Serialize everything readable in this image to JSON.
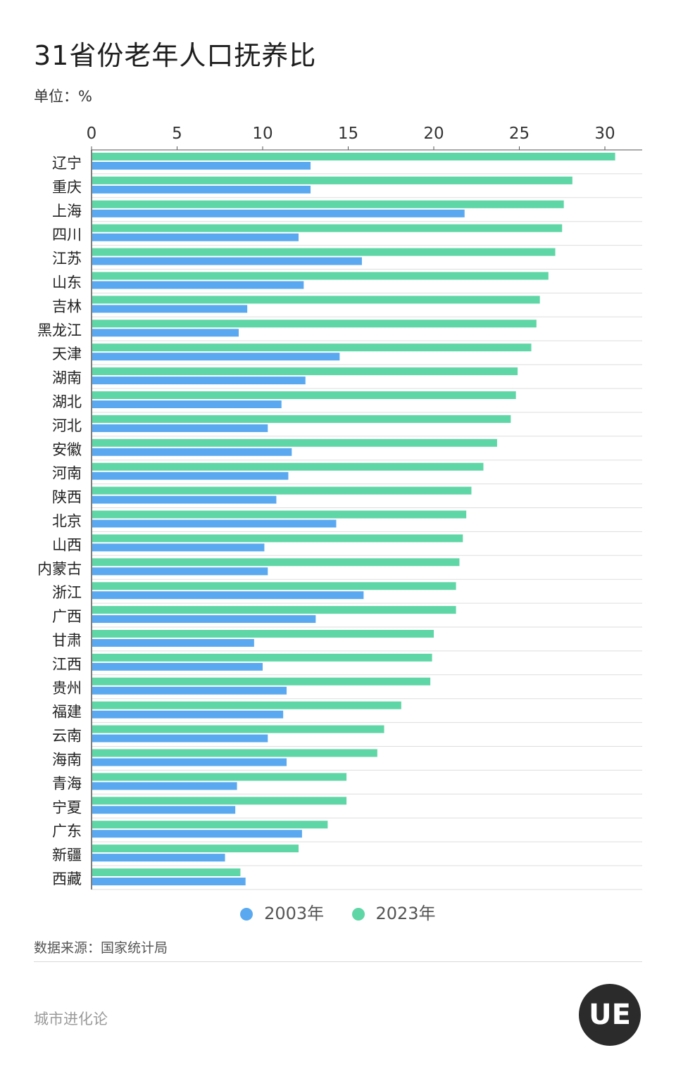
{
  "title": "31省份老年人口抚养比",
  "unit_label": "单位：%",
  "source_label": "数据来源：国家统计局",
  "brand": "城市进化论",
  "logo_text": "UE",
  "colors": {
    "series_2003": "#5aa9f0",
    "series_2023": "#5fd6a6",
    "grid": "#dddddd",
    "axis": "#555555"
  },
  "chart_data": {
    "type": "bar",
    "orientation": "horizontal",
    "xlim": [
      0,
      32
    ],
    "ticks": [
      0,
      5,
      10,
      15,
      20,
      25,
      30
    ],
    "legend": [
      "2003年",
      "2023年"
    ],
    "categories": [
      "辽宁",
      "重庆",
      "上海",
      "四川",
      "江苏",
      "山东",
      "吉林",
      "黑龙江",
      "天津",
      "湖南",
      "湖北",
      "河北",
      "安徽",
      "河南",
      "陕西",
      "北京",
      "山西",
      "内蒙古",
      "浙江",
      "广西",
      "甘肃",
      "江西",
      "贵州",
      "福建",
      "云南",
      "海南",
      "青海",
      "宁夏",
      "广东",
      "新疆",
      "西藏"
    ],
    "series": [
      {
        "name": "2023年",
        "color": "#5fd6a6",
        "values": [
          30.6,
          28.1,
          27.6,
          27.5,
          27.1,
          26.7,
          26.2,
          26.0,
          25.7,
          24.9,
          24.8,
          24.5,
          23.7,
          22.9,
          22.2,
          21.9,
          21.7,
          21.5,
          21.3,
          21.3,
          20.0,
          19.9,
          19.8,
          18.1,
          17.1,
          16.7,
          14.9,
          14.9,
          13.8,
          12.1,
          8.7
        ]
      },
      {
        "name": "2003年",
        "color": "#5aa9f0",
        "values": [
          12.8,
          12.8,
          21.8,
          12.1,
          15.8,
          12.4,
          9.1,
          8.6,
          14.5,
          12.5,
          11.1,
          10.3,
          11.7,
          11.5,
          10.8,
          14.3,
          10.1,
          10.3,
          15.9,
          13.1,
          9.5,
          10.0,
          11.4,
          11.2,
          10.3,
          11.4,
          8.5,
          8.4,
          12.3,
          7.8,
          9.0
        ]
      }
    ]
  }
}
